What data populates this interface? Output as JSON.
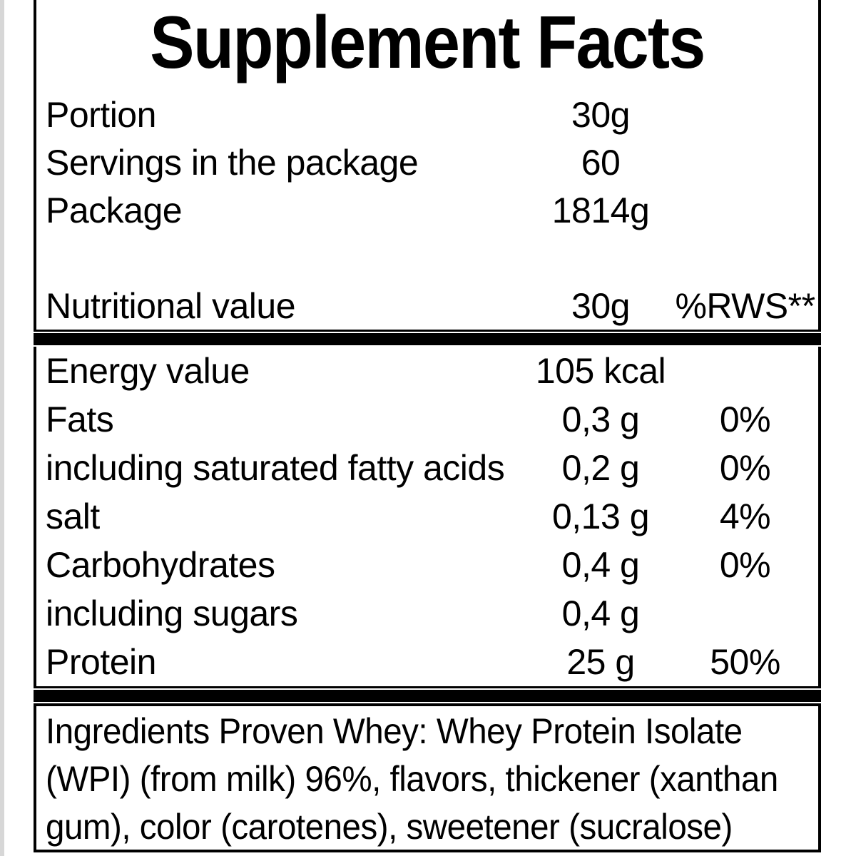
{
  "title": "Supplement Facts",
  "package_info": [
    {
      "label": "Portion",
      "value": "30g"
    },
    {
      "label": "Servings in the package",
      "value": "60"
    },
    {
      "label": "Package",
      "value": "1814g"
    }
  ],
  "nutrition_header": {
    "label": "Nutritional value",
    "amount": "30g",
    "rws": "%RWS**"
  },
  "nutrients": [
    {
      "name": "Energy value",
      "amount": "105 kcal",
      "rws": ""
    },
    {
      "name": "Fats",
      "amount": "0,3 g",
      "rws": "0%"
    },
    {
      "name": "including saturated fatty acids",
      "amount": "0,2 g",
      "rws": "0%"
    },
    {
      "name": "salt",
      "amount": "0,13 g",
      "rws": "4%"
    },
    {
      "name": "Carbohydrates",
      "amount": "0,4 g",
      "rws": "0%"
    },
    {
      "name": "including sugars",
      "amount": "0,4 g",
      "rws": ""
    },
    {
      "name": "Protein",
      "amount": "25 g",
      "rws": "50%"
    }
  ],
  "ingredients_lines": [
    "Ingredients Proven Whey: Whey Protein Isolate",
    "(WPI) (from milk) 96%, flavors, thickener (xanthan",
    "gum), color (carotenes), sweetener (sucralose)"
  ],
  "colors": {
    "text": "#000000",
    "background": "#ffffff",
    "border": "#000000",
    "divider": "#000000"
  }
}
